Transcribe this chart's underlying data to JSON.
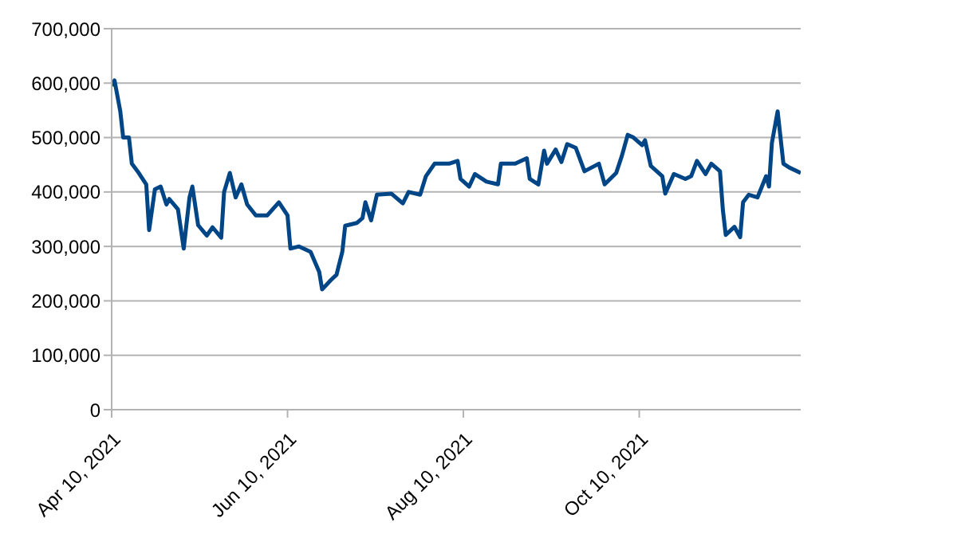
{
  "chart_data": {
    "type": "line",
    "x": [
      "2021-04-10",
      "2021-04-11",
      "2021-04-13",
      "2021-04-14",
      "2021-04-16",
      "2021-04-17",
      "2021-04-19",
      "2021-04-22",
      "2021-04-23",
      "2021-04-25",
      "2021-04-27",
      "2021-04-29",
      "2021-04-30",
      "2021-05-03",
      "2021-05-05",
      "2021-05-07",
      "2021-05-08",
      "2021-05-10",
      "2021-05-13",
      "2021-05-15",
      "2021-05-18",
      "2021-05-19",
      "2021-05-21",
      "2021-05-23",
      "2021-05-25",
      "2021-05-27",
      "2021-05-30",
      "2021-06-03",
      "2021-06-07",
      "2021-06-10",
      "2021-06-11",
      "2021-06-14",
      "2021-06-18",
      "2021-06-21",
      "2021-06-22",
      "2021-06-25",
      "2021-06-27",
      "2021-06-29",
      "2021-06-30",
      "2021-07-04",
      "2021-07-06",
      "2021-07-07",
      "2021-07-09",
      "2021-07-11",
      "2021-07-16",
      "2021-07-20",
      "2021-07-22",
      "2021-07-26",
      "2021-07-28",
      "2021-07-31",
      "2021-08-05",
      "2021-08-08",
      "2021-08-09",
      "2021-08-12",
      "2021-08-14",
      "2021-08-18",
      "2021-08-22",
      "2021-08-23",
      "2021-08-28",
      "2021-09-01",
      "2021-09-02",
      "2021-09-05",
      "2021-09-07",
      "2021-09-08",
      "2021-09-11",
      "2021-09-13",
      "2021-09-15",
      "2021-09-18",
      "2021-09-21",
      "2021-09-26",
      "2021-09-28",
      "2021-10-02",
      "2021-10-04",
      "2021-10-06",
      "2021-10-08",
      "2021-10-11",
      "2021-10-12",
      "2021-10-14",
      "2021-10-18",
      "2021-10-19",
      "2021-10-22",
      "2021-10-26",
      "2021-10-28",
      "2021-10-30",
      "2021-11-02",
      "2021-11-04",
      "2021-11-07",
      "2021-11-08",
      "2021-11-09",
      "2021-11-12",
      "2021-11-14",
      "2021-11-15",
      "2021-11-17",
      "2021-11-20",
      "2021-11-23",
      "2021-11-24",
      "2021-11-25",
      "2021-11-27",
      "2021-11-29",
      "2021-12-01",
      "2021-12-05"
    ],
    "series": [
      {
        "color": "#004586",
        "values": [
          595000,
          605000,
          548000,
          500000,
          500000,
          452000,
          438000,
          414000,
          330000,
          405000,
          410000,
          377000,
          387000,
          368000,
          296000,
          390000,
          410000,
          339000,
          320000,
          335000,
          316000,
          400000,
          435000,
          390000,
          414000,
          377000,
          357000,
          357000,
          381000,
          357000,
          296000,
          300000,
          290000,
          253000,
          221000,
          238000,
          248000,
          290000,
          338000,
          343000,
          352000,
          381000,
          348000,
          395000,
          397000,
          379000,
          400000,
          395000,
          429000,
          452000,
          452000,
          457000,
          424000,
          410000,
          433000,
          419000,
          414000,
          452000,
          452000,
          462000,
          424000,
          414000,
          476000,
          452000,
          478000,
          455000,
          488000,
          481000,
          438000,
          452000,
          414000,
          435000,
          467000,
          505000,
          500000,
          486000,
          495000,
          448000,
          429000,
          397000,
          433000,
          424000,
          429000,
          457000,
          433000,
          452000,
          438000,
          367000,
          321000,
          336000,
          317000,
          381000,
          395000,
          390000,
          429000,
          410000,
          490000,
          548000,
          452000,
          445000,
          435000
        ]
      }
    ],
    "xlim": [
      "2021-04-10",
      "2021-12-05"
    ],
    "xticks": [
      {
        "value": "2021-04-10",
        "label": "Apr 10, 2021"
      },
      {
        "value": "2021-06-10",
        "label": "Jun 10, 2021"
      },
      {
        "value": "2021-08-10",
        "label": "Aug 10, 2021"
      },
      {
        "value": "2021-10-10",
        "label": "Oct 10, 2021"
      }
    ],
    "ylim": [
      0,
      700000
    ],
    "yticks": [
      0,
      {
        "value": 100000,
        "label": "100,000"
      },
      {
        "value": 200000,
        "label": "200,000"
      },
      {
        "value": 300000,
        "label": "300,000"
      },
      {
        "value": 400000,
        "label": "400,000"
      },
      {
        "value": 500000,
        "label": "500,000"
      },
      {
        "value": 600000,
        "label": "600,000"
      },
      {
        "value": 700000,
        "label": "700,000"
      }
    ],
    "grid": "y",
    "marker": "none",
    "line_style": "solid"
  }
}
